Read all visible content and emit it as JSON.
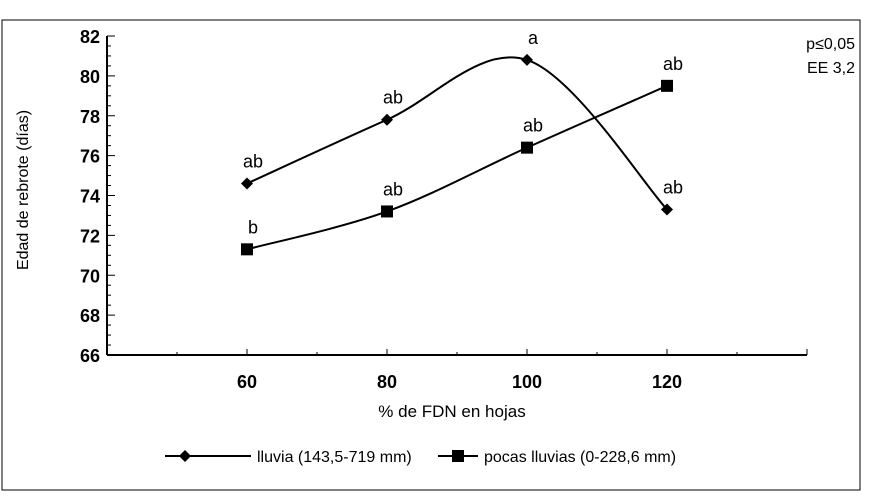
{
  "chart_data": {
    "type": "line",
    "title": "",
    "xlabel": "% de FDN en hojas",
    "ylabel": "Edad de rebrote (días)",
    "x": [
      60,
      80,
      100,
      120
    ],
    "xlim": [
      40,
      140
    ],
    "x_ticks": [
      "60",
      "80",
      "100",
      "120"
    ],
    "ylim": [
      66,
      82
    ],
    "y_ticks": [
      "66",
      "68",
      "70",
      "72",
      "74",
      "76",
      "78",
      "80",
      "82"
    ],
    "series": [
      {
        "name": "lluvia (143,5-719 mm)",
        "marker": "diamond",
        "values": [
          74.6,
          77.8,
          80.8,
          73.3
        ],
        "labels": [
          "ab",
          "ab",
          "a",
          "ab"
        ],
        "color": "#000000"
      },
      {
        "name": "pocas lluvias (0-228,6 mm)",
        "marker": "square",
        "values": [
          71.3,
          73.2,
          76.4,
          79.5
        ],
        "labels": [
          "b",
          "ab",
          "ab",
          "ab"
        ],
        "color": "#000000"
      }
    ],
    "annotations": [
      "p≤0,05",
      "EE 3,2"
    ],
    "grid": false,
    "legend_position": "bottom"
  }
}
